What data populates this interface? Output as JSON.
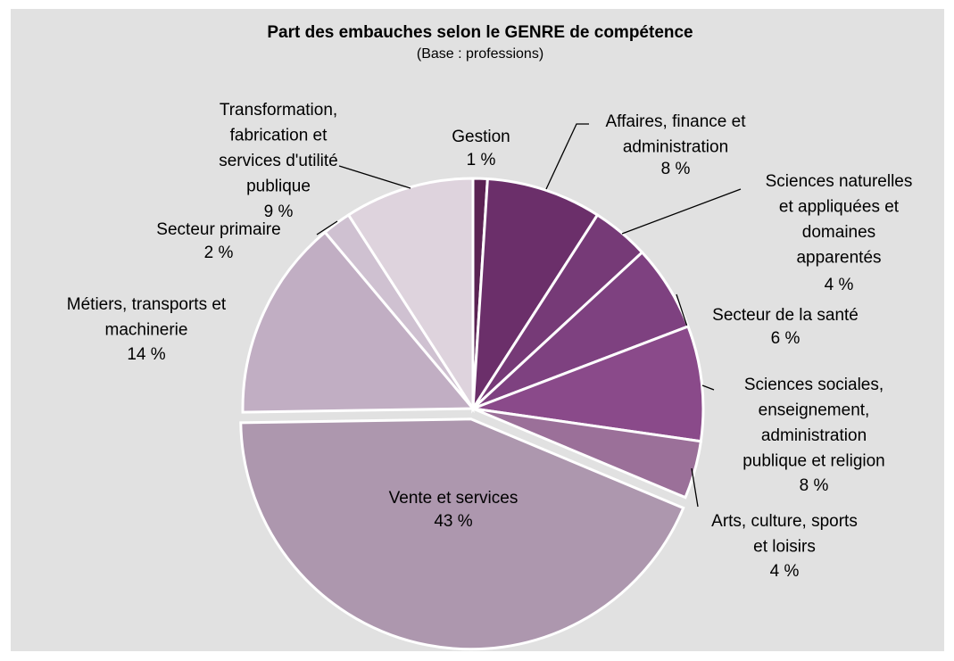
{
  "chart_data": {
    "type": "pie",
    "title": "Part des embauches selon le GENRE de compétence",
    "subtitle": "(Base : professions)",
    "categories": [
      "Gestion",
      "Affaires, finance et\nadministration",
      "Sciences naturelles\net appliquées et\ndomaines\napparentés",
      "Secteur de la santé",
      "Sciences sociales,\nenseignement,\nadministration\npublique et religion",
      "Arts, culture, sports\net loisirs",
      "Vente et services",
      "Métiers, transports et\nmachinerie",
      "Secteur primaire",
      "Transformation,\nfabrication et\nservices d'utilité\npublique"
    ],
    "values": [
      1,
      8,
      4,
      6,
      8,
      4,
      43,
      14,
      2,
      9
    ],
    "value_labels": [
      "1 %",
      "8 %",
      "4 %",
      "6 %",
      "8 %",
      "4 %",
      "43 %",
      "14 %",
      "2 %",
      "9 %"
    ],
    "colors": [
      "#5a2253",
      "#6b2f6a",
      "#763a77",
      "#7e4180",
      "#8a4a8a",
      "#9b7099",
      "#ad97ae",
      "#c1aec3",
      "#cfc1d1",
      "#ded3dd"
    ]
  }
}
